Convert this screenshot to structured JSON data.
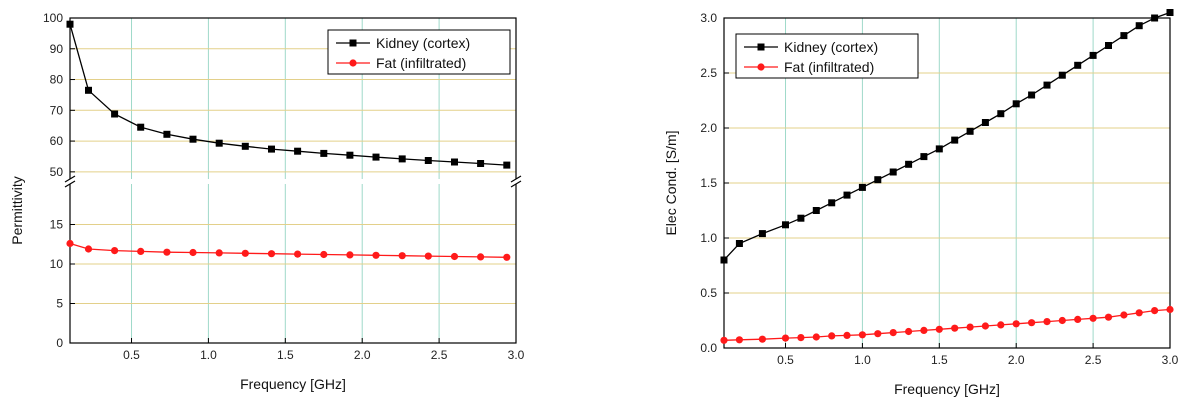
{
  "chart_data": [
    {
      "type": "line",
      "xlabel": "Frequency [GHz]",
      "ylabel": "Permittivity",
      "xlim": [
        0.1,
        3.0
      ],
      "ylim_lower": [
        0,
        20
      ],
      "ylim_upper": [
        48,
        100
      ],
      "broken_axis": true,
      "grid": true,
      "legend_position": "top-right",
      "x_ticks": [
        "0.5",
        "1.0",
        "1.5",
        "2.0",
        "2.5",
        "3.0"
      ],
      "y_ticks_lower": [
        "0",
        "5",
        "10",
        "15"
      ],
      "y_ticks_upper": [
        "50",
        "60",
        "70",
        "80",
        "90",
        "100"
      ],
      "series": [
        {
          "name": "Kidney (cortex)",
          "color": "#000000",
          "marker": "square",
          "x": [
            0.1,
            0.22,
            0.39,
            0.56,
            0.73,
            0.9,
            1.07,
            1.24,
            1.41,
            1.58,
            1.75,
            1.92,
            2.09,
            2.26,
            2.43,
            2.6,
            2.77,
            2.94
          ],
          "y": [
            98,
            76.5,
            68.8,
            64.5,
            62.2,
            60.6,
            59.3,
            58.3,
            57.4,
            56.7,
            56.0,
            55.4,
            54.8,
            54.2,
            53.7,
            53.2,
            52.7,
            52.2
          ]
        },
        {
          "name": "Fat (infiltrated)",
          "color": "#ff1a1a",
          "marker": "circle",
          "x": [
            0.1,
            0.22,
            0.39,
            0.56,
            0.73,
            0.9,
            1.07,
            1.24,
            1.41,
            1.58,
            1.75,
            1.92,
            2.09,
            2.26,
            2.43,
            2.6,
            2.77,
            2.94
          ],
          "y": [
            12.6,
            11.9,
            11.7,
            11.6,
            11.5,
            11.45,
            11.4,
            11.35,
            11.3,
            11.25,
            11.2,
            11.15,
            11.1,
            11.05,
            11.0,
            10.95,
            10.9,
            10.85
          ]
        }
      ]
    },
    {
      "type": "line",
      "xlabel": "Frequency [GHz]",
      "ylabel": "Elec Cond. [S/m]",
      "xlim": [
        0.1,
        3.0
      ],
      "ylim": [
        0.0,
        3.0
      ],
      "grid": true,
      "legend_position": "top-left",
      "x_ticks": [
        "0.5",
        "1.0",
        "1.5",
        "2.0",
        "2.5",
        "3.0"
      ],
      "y_ticks": [
        "0.0",
        "0.5",
        "1.0",
        "1.5",
        "2.0",
        "2.5",
        "3.0"
      ],
      "series": [
        {
          "name": "Kidney (cortex)",
          "color": "#000000",
          "marker": "square",
          "x": [
            0.1,
            0.2,
            0.35,
            0.5,
            0.6,
            0.7,
            0.8,
            0.9,
            1.0,
            1.1,
            1.2,
            1.3,
            1.4,
            1.5,
            1.6,
            1.7,
            1.8,
            1.9,
            2.0,
            2.1,
            2.2,
            2.3,
            2.4,
            2.5,
            2.6,
            2.7,
            2.8,
            2.9,
            3.0
          ],
          "y": [
            0.8,
            0.95,
            1.04,
            1.12,
            1.18,
            1.25,
            1.32,
            1.39,
            1.46,
            1.53,
            1.6,
            1.67,
            1.74,
            1.81,
            1.89,
            1.97,
            2.05,
            2.13,
            2.22,
            2.3,
            2.39,
            2.48,
            2.57,
            2.66,
            2.75,
            2.84,
            2.93,
            3.0,
            3.05
          ]
        },
        {
          "name": "Fat (infiltrated)",
          "color": "#ff1a1a",
          "marker": "circle",
          "x": [
            0.1,
            0.2,
            0.35,
            0.5,
            0.6,
            0.7,
            0.8,
            0.9,
            1.0,
            1.1,
            1.2,
            1.3,
            1.4,
            1.5,
            1.6,
            1.7,
            1.8,
            1.9,
            2.0,
            2.1,
            2.2,
            2.3,
            2.4,
            2.5,
            2.6,
            2.7,
            2.8,
            2.9,
            3.0
          ],
          "y": [
            0.07,
            0.075,
            0.08,
            0.09,
            0.095,
            0.1,
            0.11,
            0.115,
            0.12,
            0.13,
            0.14,
            0.15,
            0.16,
            0.17,
            0.18,
            0.19,
            0.2,
            0.21,
            0.22,
            0.23,
            0.24,
            0.25,
            0.26,
            0.27,
            0.28,
            0.3,
            0.32,
            0.34,
            0.35
          ]
        }
      ]
    }
  ]
}
